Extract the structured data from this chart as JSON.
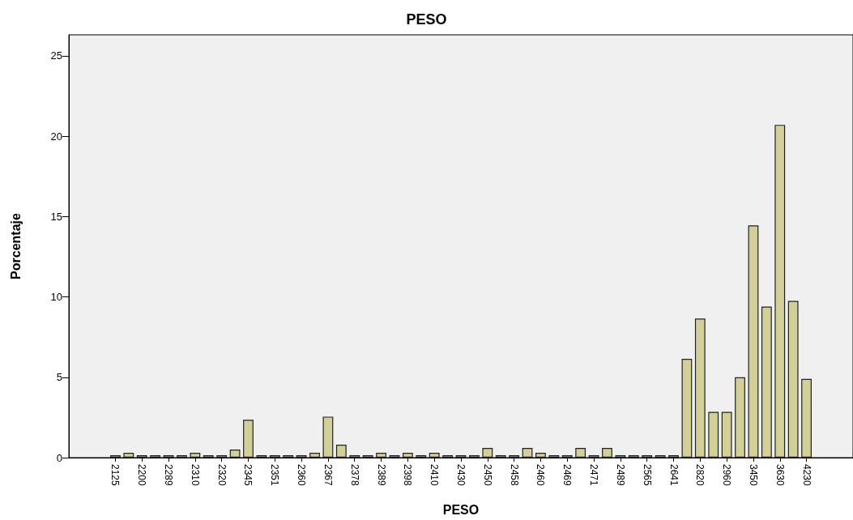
{
  "chart_data": {
    "type": "bar",
    "title": "PESO",
    "xlabel": "PESO",
    "ylabel": "Porcentaje",
    "categories": [
      "2125",
      null,
      "2200",
      null,
      "2289",
      null,
      "2310",
      null,
      "2320",
      null,
      "2345",
      null,
      "2351",
      null,
      "2360",
      null,
      "2367",
      null,
      "2378",
      null,
      "2389",
      null,
      "2398",
      null,
      "2410",
      null,
      "2430",
      null,
      "2450",
      null,
      "2458",
      null,
      "2460",
      null,
      "2469",
      null,
      "2471",
      null,
      "2489",
      null,
      "2565",
      null,
      "2641",
      null,
      "2820",
      null,
      "2960",
      null,
      "3450",
      null,
      "3630",
      null,
      "4230"
    ],
    "values": [
      0.15,
      0.3,
      0.15,
      0.15,
      0.15,
      0.15,
      0.3,
      0.15,
      0.15,
      0.5,
      2.35,
      0.15,
      0.15,
      0.15,
      0.15,
      0.3,
      2.55,
      0.8,
      0.15,
      0.15,
      0.3,
      0.15,
      0.3,
      0.15,
      0.3,
      0.15,
      0.15,
      0.15,
      0.6,
      0.15,
      0.15,
      0.6,
      0.3,
      0.15,
      0.15,
      0.6,
      0.15,
      0.6,
      0.15,
      0.15,
      0.15,
      0.15,
      0.15,
      6.15,
      8.65,
      2.85,
      2.85,
      5.0,
      14.45,
      9.4,
      20.7,
      9.75,
      4.9
    ],
    "color": "#d3cf98",
    "ylim": [
      0,
      26.3
    ],
    "yticks": [
      0,
      5,
      10,
      15,
      20,
      25
    ],
    "grid": false
  }
}
